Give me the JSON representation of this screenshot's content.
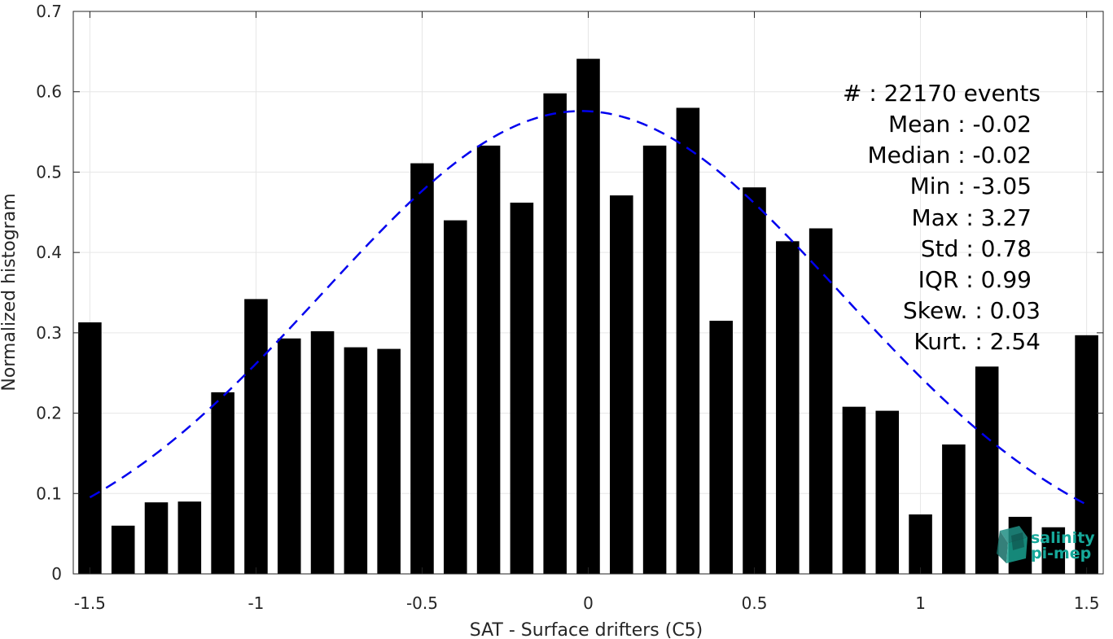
{
  "chart_data": {
    "type": "bar",
    "xlabel": "SAT - Surface drifters (C5)",
    "ylabel": "Normalized histogram",
    "xlim": [
      -1.55,
      1.55
    ],
    "ylim": [
      0,
      0.7
    ],
    "xticks": [
      -1.5,
      -1,
      -0.5,
      0,
      0.5,
      1,
      1.5
    ],
    "xtick_labels": [
      "-1.5",
      "-1",
      "-0.5",
      "0",
      "0.5",
      "1",
      "1.5"
    ],
    "yticks": [
      0,
      0.1,
      0.2,
      0.3,
      0.4,
      0.5,
      0.6,
      0.7
    ],
    "ytick_labels": [
      "0",
      "0.1",
      "0.2",
      "0.3",
      "0.4",
      "0.5",
      "0.6",
      "0.7"
    ],
    "grid": true,
    "bar_width": 0.07,
    "x": [
      -1.5,
      -1.4,
      -1.3,
      -1.2,
      -1.1,
      -1.0,
      -0.9,
      -0.8,
      -0.7,
      -0.6,
      -0.5,
      -0.4,
      -0.3,
      -0.2,
      -0.1,
      0.0,
      0.1,
      0.2,
      0.3,
      0.4,
      0.5,
      0.6,
      0.7,
      0.8,
      0.9,
      1.0,
      1.1,
      1.2,
      1.3,
      1.4,
      1.5
    ],
    "values": [
      0.313,
      0.06,
      0.089,
      0.09,
      0.226,
      0.342,
      0.293,
      0.302,
      0.282,
      0.28,
      0.511,
      0.44,
      0.533,
      0.462,
      0.598,
      0.641,
      0.471,
      0.533,
      0.58,
      0.315,
      0.481,
      0.414,
      0.43,
      0.208,
      0.203,
      0.074,
      0.161,
      0.258,
      0.071,
      0.058,
      0.297
    ],
    "bar_color": "#000000",
    "fit_curve": {
      "style": "dashed",
      "color": "#0000ee",
      "mean": -0.02,
      "std": 0.78,
      "peak": 0.576,
      "x_range": [
        -1.5,
        1.5
      ]
    },
    "stats": [
      {
        "text": "#  : 22170 events"
      },
      {
        "text": "Mean : -0.02"
      },
      {
        "text": "Median : -0.02"
      },
      {
        "text": "Min : -3.05"
      },
      {
        "text": "Max : 3.27"
      },
      {
        "text": "Std : 0.78"
      },
      {
        "text": "IQR : 0.99"
      },
      {
        "text": "Skew. : 0.03"
      },
      {
        "text": "Kurt. : 2.54"
      }
    ]
  },
  "logo": {
    "line1": "salinity",
    "line2": "pi-mep",
    "color": "#16a89a"
  }
}
